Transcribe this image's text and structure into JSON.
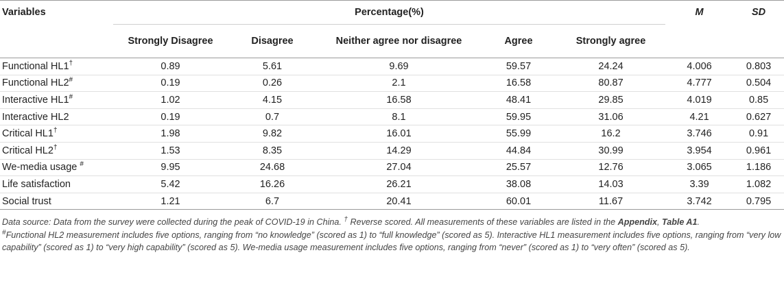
{
  "table": {
    "header": {
      "variables": "Variables",
      "percentage_group": "Percentage(%)",
      "m": "M",
      "sd": "SD",
      "sub_columns": [
        "Strongly Disagree",
        "Disagree",
        "Neither agree nor disagree",
        "Agree",
        "Strongly agree"
      ]
    },
    "rows": [
      {
        "label": "Functional HL1",
        "mark": "†",
        "values": [
          "0.89",
          "5.61",
          "9.69",
          "59.57",
          "24.24",
          "4.006",
          "0.803"
        ]
      },
      {
        "label": "Functional HL2",
        "mark": "#",
        "values": [
          "0.19",
          "0.26",
          "2.1",
          "16.58",
          "80.87",
          "4.777",
          "0.504"
        ]
      },
      {
        "label": "Interactive HL1",
        "mark": "#",
        "values": [
          "1.02",
          "4.15",
          "16.58",
          "48.41",
          "29.85",
          "4.019",
          "0.85"
        ]
      },
      {
        "label": "Interactive HL2",
        "mark": "",
        "values": [
          "0.19",
          "0.7",
          "8.1",
          "59.95",
          "31.06",
          "4.21",
          "0.627"
        ]
      },
      {
        "label": "Critical HL1",
        "mark": "†",
        "values": [
          "1.98",
          "9.82",
          "16.01",
          "55.99",
          "16.2",
          "3.746",
          "0.91"
        ]
      },
      {
        "label": "Critical HL2",
        "mark": "†",
        "values": [
          "1.53",
          "8.35",
          "14.29",
          "44.84",
          "30.99",
          "3.954",
          "0.961"
        ]
      },
      {
        "label": "We-media usage ",
        "mark": "#",
        "values": [
          "9.95",
          "24.68",
          "27.04",
          "25.57",
          "12.76",
          "3.065",
          "1.186"
        ]
      },
      {
        "label": "Life satisfaction",
        "mark": "",
        "values": [
          "5.42",
          "16.26",
          "26.21",
          "38.08",
          "14.03",
          "3.39",
          "1.082"
        ]
      },
      {
        "label": "Social trust",
        "mark": "",
        "values": [
          "1.21",
          "6.7",
          "20.41",
          "60.01",
          "11.67",
          "3.742",
          "0.795"
        ]
      }
    ]
  },
  "note": {
    "line1_text": "Data source: Data from the survey were collected during the peak of COVID-19 in China. ",
    "line1_mark": "†",
    "line1_text2": " Reverse scored. All measurements of these variables are listed in the ",
    "appendix": "Appendix",
    "comma": ", ",
    "table_ref": "Table A1",
    "period": ".",
    "line2_mark": "#",
    "line2_text": "Functional HL2 measurement includes five options, ranging from “no knowledge” (scored as 1) to “full knowledge” (scored as 5). Interactive HL1 measurement includes five options, ranging from “very low capability” (scored as 1) to “very high capability” (scored as 5). We-media usage measurement includes five options, ranging from “never” (scored as 1) to “very often” (scored as 5)."
  }
}
